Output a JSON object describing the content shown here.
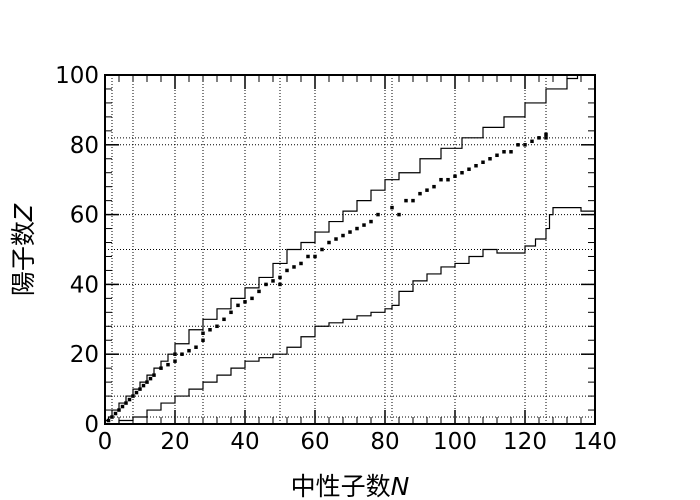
{
  "chart_data": {
    "type": "line",
    "title": "",
    "xlabel": "中性子数",
    "xlabel_symbol": "N",
    "ylabel": "陽子数",
    "ylabel_symbol": "Z",
    "xlim": [
      0,
      140
    ],
    "ylim": [
      0,
      100
    ],
    "xticks": [
      0,
      20,
      40,
      60,
      80,
      100,
      120,
      140
    ],
    "yticks": [
      0,
      20,
      40,
      60,
      80,
      100
    ],
    "magic_numbers": [
      2,
      8,
      20,
      28,
      50,
      82,
      126
    ],
    "grid": true,
    "colors": {
      "line": "#000000",
      "grid": "#000000",
      "stable": "#000000"
    },
    "series": [
      {
        "role": "proton-drip-line",
        "points": [
          [
            0,
            1
          ],
          [
            1,
            2
          ],
          [
            2,
            4
          ],
          [
            4,
            6
          ],
          [
            6,
            8
          ],
          [
            8,
            10
          ],
          [
            10,
            12
          ],
          [
            12,
            14
          ],
          [
            14,
            16
          ],
          [
            16,
            18
          ],
          [
            18,
            20
          ],
          [
            20,
            23
          ],
          [
            24,
            27
          ],
          [
            28,
            30
          ],
          [
            32,
            33
          ],
          [
            36,
            36
          ],
          [
            40,
            39
          ],
          [
            44,
            42
          ],
          [
            48,
            46
          ],
          [
            52,
            50
          ],
          [
            56,
            52
          ],
          [
            60,
            55
          ],
          [
            64,
            58
          ],
          [
            68,
            61
          ],
          [
            72,
            64
          ],
          [
            76,
            67
          ],
          [
            80,
            70
          ],
          [
            84,
            72
          ],
          [
            90,
            76
          ],
          [
            96,
            79
          ],
          [
            102,
            82
          ],
          [
            108,
            85
          ],
          [
            114,
            88
          ],
          [
            120,
            92
          ],
          [
            126,
            96
          ],
          [
            132,
            99
          ],
          [
            135,
            100
          ]
        ]
      },
      {
        "role": "neutron-drip-line",
        "points": [
          [
            1,
            0
          ],
          [
            4,
            1
          ],
          [
            8,
            2
          ],
          [
            12,
            4
          ],
          [
            16,
            6
          ],
          [
            20,
            8
          ],
          [
            24,
            10
          ],
          [
            28,
            12
          ],
          [
            32,
            14
          ],
          [
            36,
            16
          ],
          [
            40,
            18
          ],
          [
            44,
            19
          ],
          [
            48,
            20
          ],
          [
            52,
            22
          ],
          [
            56,
            25
          ],
          [
            60,
            28
          ],
          [
            64,
            29
          ],
          [
            68,
            30
          ],
          [
            72,
            31
          ],
          [
            76,
            32
          ],
          [
            80,
            33
          ],
          [
            82,
            34
          ],
          [
            84,
            38
          ],
          [
            88,
            41
          ],
          [
            92,
            43
          ],
          [
            96,
            45
          ],
          [
            100,
            46
          ],
          [
            104,
            48
          ],
          [
            108,
            50
          ],
          [
            112,
            49
          ],
          [
            116,
            49
          ],
          [
            120,
            51
          ],
          [
            123,
            53
          ],
          [
            126,
            56
          ],
          [
            127,
            60
          ],
          [
            128,
            62
          ],
          [
            132,
            62
          ],
          [
            136,
            61
          ],
          [
            140,
            63
          ]
        ]
      },
      {
        "role": "stable-nuclei",
        "points": [
          [
            1,
            1
          ],
          [
            2,
            2
          ],
          [
            3,
            3
          ],
          [
            4,
            4
          ],
          [
            5,
            5
          ],
          [
            6,
            6
          ],
          [
            7,
            7
          ],
          [
            8,
            8
          ],
          [
            9,
            9
          ],
          [
            10,
            10
          ],
          [
            11,
            11
          ],
          [
            12,
            12
          ],
          [
            13,
            13
          ],
          [
            14,
            14
          ],
          [
            16,
            16
          ],
          [
            18,
            17
          ],
          [
            20,
            18
          ],
          [
            20,
            20
          ],
          [
            22,
            20
          ],
          [
            24,
            21
          ],
          [
            26,
            22
          ],
          [
            28,
            24
          ],
          [
            28,
            26
          ],
          [
            30,
            27
          ],
          [
            32,
            28
          ],
          [
            34,
            30
          ],
          [
            36,
            32
          ],
          [
            38,
            34
          ],
          [
            40,
            35
          ],
          [
            42,
            36
          ],
          [
            44,
            38
          ],
          [
            46,
            40
          ],
          [
            48,
            41
          ],
          [
            50,
            40
          ],
          [
            50,
            42
          ],
          [
            52,
            44
          ],
          [
            54,
            45
          ],
          [
            56,
            46
          ],
          [
            58,
            48
          ],
          [
            60,
            48
          ],
          [
            62,
            50
          ],
          [
            64,
            52
          ],
          [
            66,
            53
          ],
          [
            68,
            54
          ],
          [
            70,
            55
          ],
          [
            72,
            56
          ],
          [
            74,
            57
          ],
          [
            76,
            58
          ],
          [
            78,
            60
          ],
          [
            82,
            62
          ],
          [
            84,
            60
          ],
          [
            86,
            64
          ],
          [
            88,
            64
          ],
          [
            90,
            66
          ],
          [
            92,
            67
          ],
          [
            94,
            68
          ],
          [
            96,
            70
          ],
          [
            98,
            70
          ],
          [
            100,
            71
          ],
          [
            102,
            72
          ],
          [
            104,
            73
          ],
          [
            106,
            74
          ],
          [
            108,
            75
          ],
          [
            110,
            76
          ],
          [
            112,
            77
          ],
          [
            114,
            78
          ],
          [
            116,
            78
          ],
          [
            118,
            80
          ],
          [
            120,
            80
          ],
          [
            122,
            81
          ],
          [
            124,
            82
          ],
          [
            126,
            82
          ],
          [
            126,
            83
          ]
        ]
      }
    ]
  }
}
